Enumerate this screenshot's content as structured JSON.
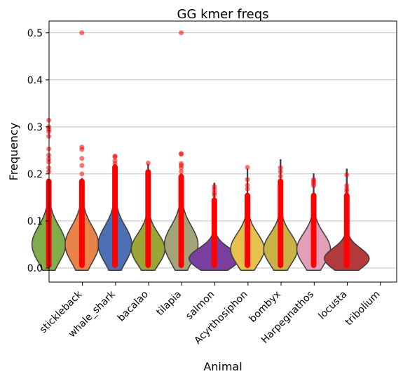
{
  "chart_data": {
    "type": "violin",
    "title": "GG kmer freqs",
    "xlabel": "Animal",
    "ylabel": "Frequency",
    "ylim": [
      -0.03,
      0.525
    ],
    "yticks": [
      "0.0",
      "0.1",
      "0.2",
      "0.3",
      "0.4",
      "0.5"
    ],
    "ytick_values": [
      0.0,
      0.1,
      0.2,
      0.3,
      0.4,
      0.5
    ],
    "grid": "y",
    "categories": [
      "stickleback",
      "whale_shark",
      "bacalao",
      "tilapia",
      "salmon",
      "Acyrthosiphon",
      "bombyx",
      "Harpegnathos",
      "locusta",
      "tribolium"
    ],
    "violins": [
      {
        "color": "#7fae4b",
        "median": 0.05,
        "max": 0.18,
        "width": 0.12
      },
      {
        "color": "#e8844a",
        "median": 0.05,
        "max": 0.19,
        "width": 0.12
      },
      {
        "color": "#4c6fb5",
        "median": 0.05,
        "max": 0.22,
        "width": 0.12
      },
      {
        "color": "#9aa637",
        "median": 0.04,
        "max": 0.22,
        "width": 0.12
      },
      {
        "color": "#a4a47a",
        "median": 0.05,
        "max": 0.2,
        "width": 0.12
      },
      {
        "color": "#7b3fa0",
        "median": 0.02,
        "max": 0.18,
        "width": 0.18
      },
      {
        "color": "#e6c14d",
        "median": 0.04,
        "max": 0.21,
        "width": 0.12
      },
      {
        "color": "#c9b347",
        "median": 0.04,
        "max": 0.23,
        "width": 0.12
      },
      {
        "color": "#e39fb9",
        "median": 0.04,
        "max": 0.2,
        "width": 0.12
      },
      {
        "color": "#b23a3a",
        "median": 0.02,
        "max": 0.21,
        "width": 0.16
      }
    ],
    "points": {
      "color": "#ff0000",
      "dense_top": [
        0.19,
        0.19,
        0.22,
        0.21,
        0.2,
        0.15,
        0.16,
        0.19,
        0.16,
        0.16
      ],
      "outliers": [
        [
          0.314,
          0.3,
          0.295,
          0.29,
          0.28,
          0.253,
          0.24,
          0.232,
          0.225,
          0.213,
          0.205
        ],
        [
          0.5,
          0.257,
          0.252,
          0.233,
          0.218,
          0.2
        ],
        [
          0.238,
          0.236,
          0.228,
          0.222,
          0.215
        ],
        [
          0.223,
          0.205,
          0.203,
          0.195
        ],
        [
          0.5,
          0.243,
          0.242,
          0.222,
          0.218,
          0.213,
          0.205
        ],
        [
          0.173,
          0.167,
          0.16,
          0.155
        ],
        [
          0.214,
          0.188,
          0.176,
          0.168
        ],
        [
          0.213,
          0.205,
          0.195
        ],
        [
          0.188,
          0.184,
          0.18,
          0.175
        ],
        [
          0.198,
          0.175,
          0.168,
          0.163
        ]
      ]
    }
  }
}
